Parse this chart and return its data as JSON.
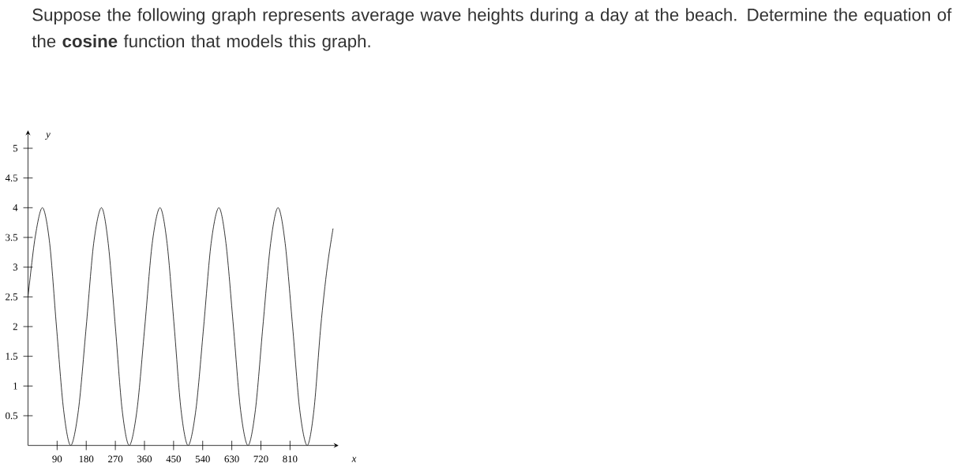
{
  "chart_data": {
    "type": "line",
    "title": "Suppose the following graph represents average wave heights during a day at the beach.  Determine the equation of the **cosine** function that models this graph.",
    "xlabel": "x",
    "ylabel": "y",
    "x": [
      0,
      22,
      45,
      67,
      88,
      110,
      132,
      156,
      180,
      203,
      227,
      248,
      270,
      291,
      313,
      337,
      361,
      384,
      408,
      430,
      452,
      473,
      495,
      519,
      543,
      566,
      590,
      612,
      635,
      657,
      680,
      703,
      726,
      750,
      773,
      795,
      818,
      840,
      863,
      884,
      905,
      925,
      943
    ],
    "series": [
      {
        "color": "#000000",
        "values": [
          2.5,
          3.5,
          4,
          3.4,
          2,
          0.6,
          0,
          0.6,
          2,
          3.4,
          4,
          3.4,
          2,
          0.6,
          0,
          0.6,
          2,
          3.4,
          4,
          3.4,
          2,
          0.6,
          0,
          0.6,
          2,
          3.4,
          4,
          3.4,
          2,
          0.6,
          0,
          0.6,
          2,
          3.4,
          4,
          3.4,
          2,
          0.6,
          0,
          0.6,
          2,
          3,
          3.65
        ]
      }
    ],
    "xlim": [
      0,
      960
    ],
    "ylim": [
      0,
      5.3
    ],
    "xticks": [
      90,
      180,
      270,
      360,
      450,
      540,
      630,
      720,
      810
    ],
    "yticks": [
      0.5,
      1,
      1.5,
      2,
      2.5,
      3,
      3.5,
      4,
      4.5,
      5
    ]
  }
}
